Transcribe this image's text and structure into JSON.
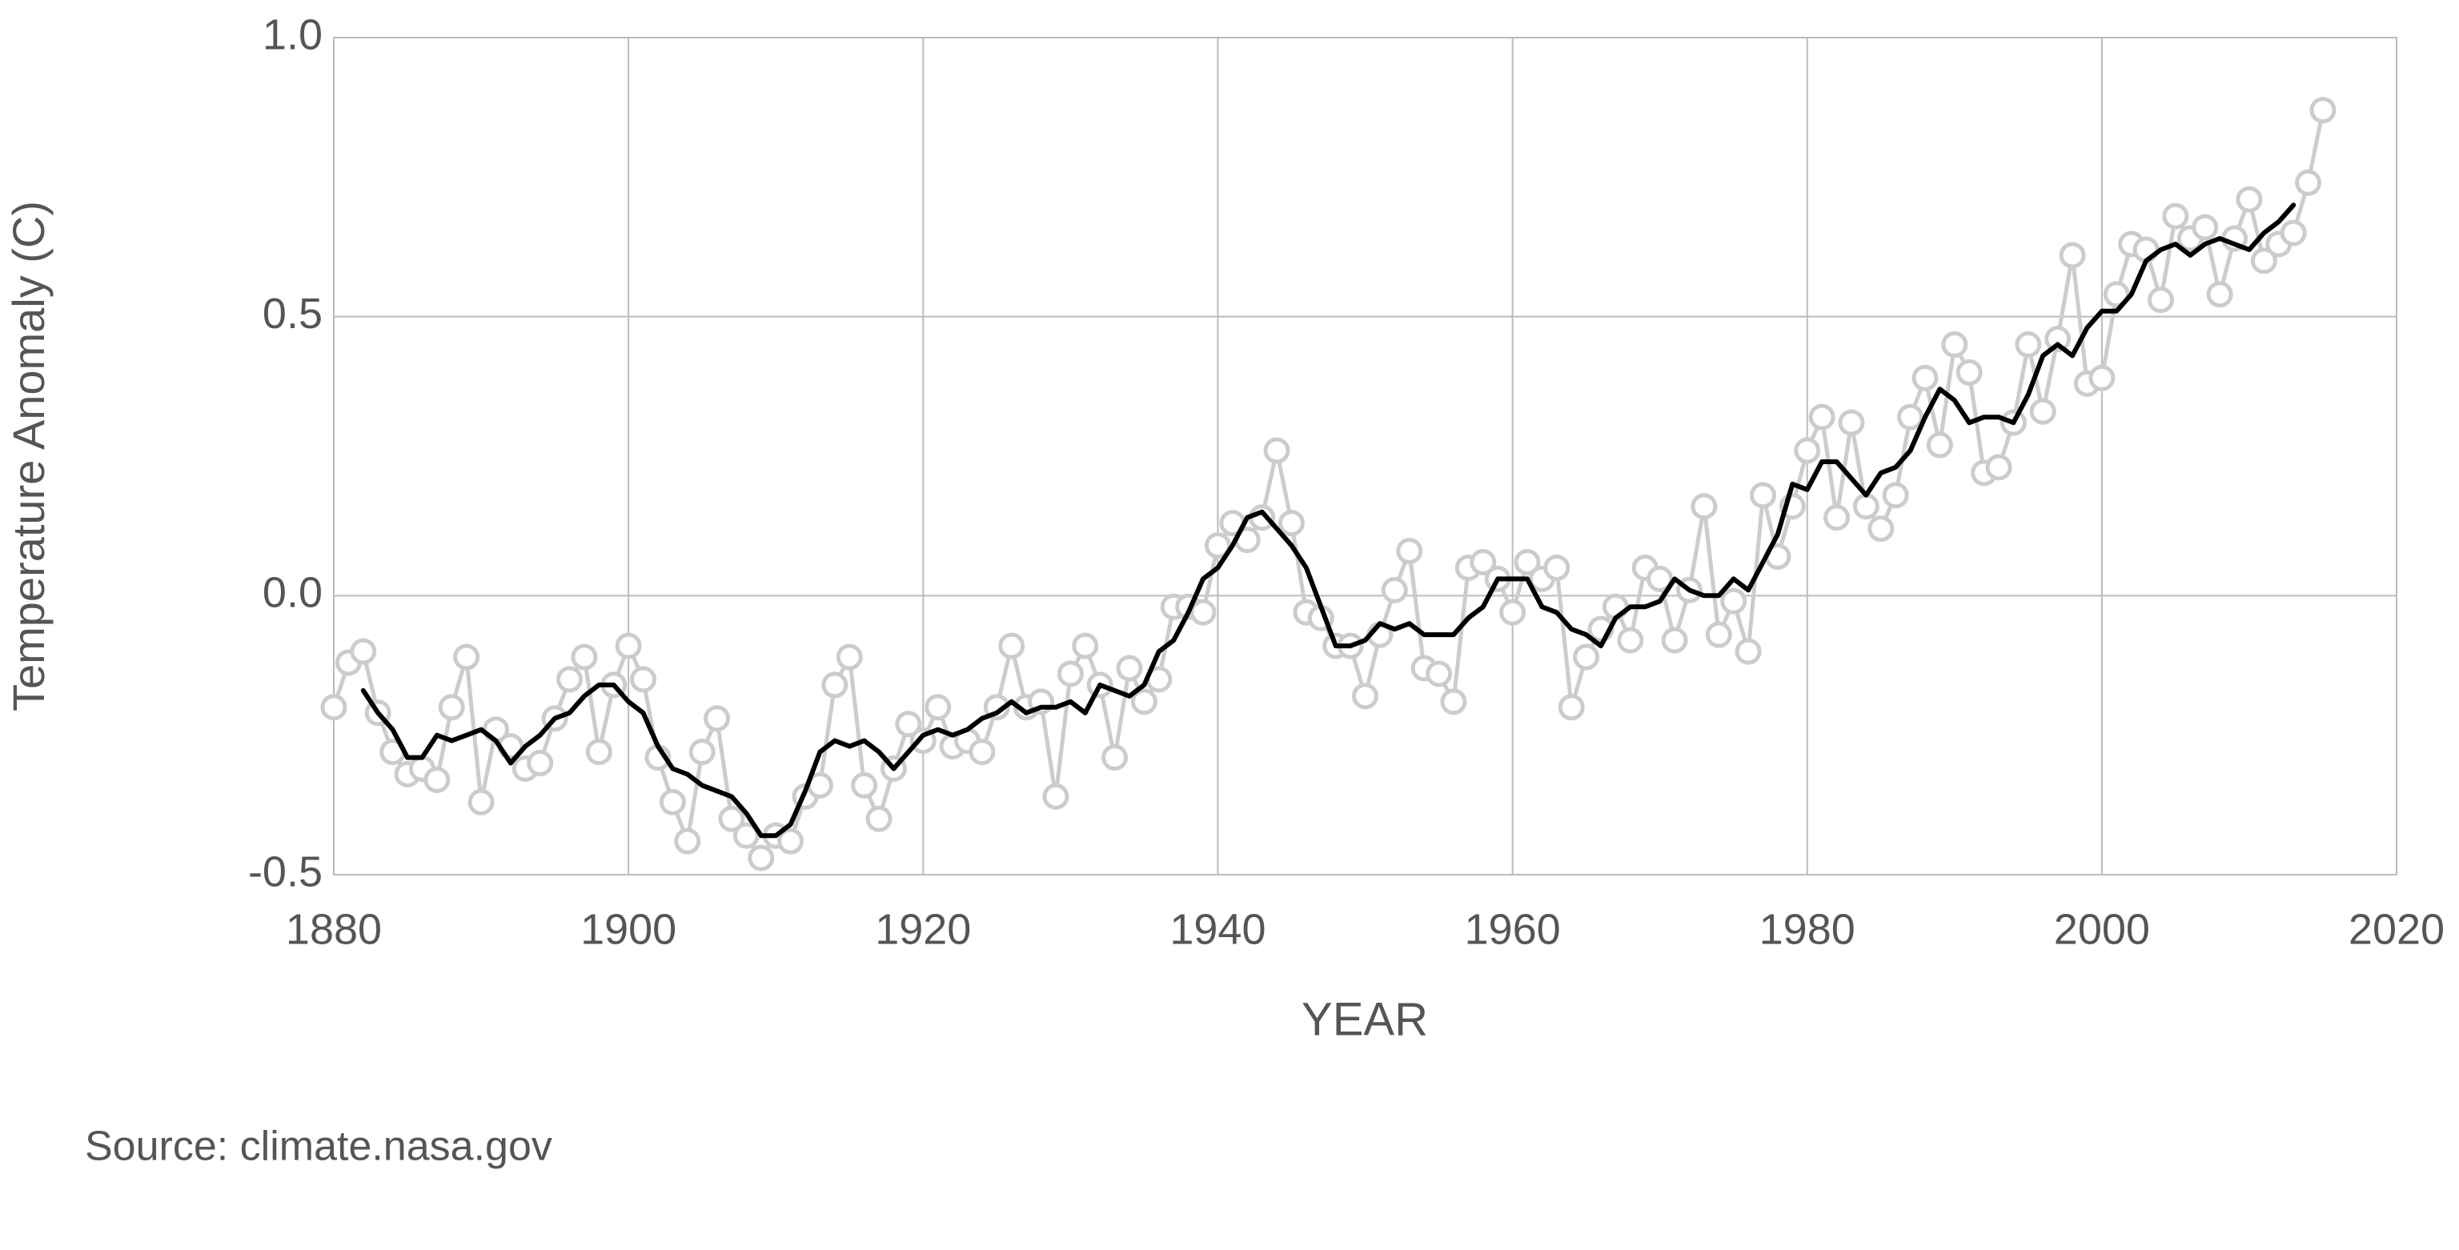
{
  "chart_data": {
    "type": "line",
    "y_label": "Temperature Anomaly (C)",
    "x_label": "YEAR",
    "source": "Source: climate.nasa.gov",
    "xlim": [
      1880,
      2020
    ],
    "xticks": [
      1880,
      1900,
      1920,
      1940,
      1960,
      1980,
      2000,
      2020
    ],
    "ylim": [
      -0.5,
      1.0
    ],
    "yticks": [
      -0.5,
      {
        "value": 0,
        "label": "0.0"
      },
      0.5,
      {
        "value": 1,
        "label": "1.0"
      }
    ],
    "grid": true,
    "x": [
      1880,
      1881,
      1882,
      1883,
      1884,
      1885,
      1886,
      1887,
      1888,
      1889,
      1890,
      1891,
      1892,
      1893,
      1894,
      1895,
      1896,
      1897,
      1898,
      1899,
      1900,
      1901,
      1902,
      1903,
      1904,
      1905,
      1906,
      1907,
      1908,
      1909,
      1910,
      1911,
      1912,
      1913,
      1914,
      1915,
      1916,
      1917,
      1918,
      1919,
      1920,
      1921,
      1922,
      1923,
      1924,
      1925,
      1926,
      1927,
      1928,
      1929,
      1930,
      1931,
      1932,
      1933,
      1934,
      1935,
      1936,
      1937,
      1938,
      1939,
      1940,
      1941,
      1942,
      1943,
      1944,
      1945,
      1946,
      1947,
      1948,
      1949,
      1950,
      1951,
      1952,
      1953,
      1954,
      1955,
      1956,
      1957,
      1958,
      1959,
      1960,
      1961,
      1962,
      1963,
      1964,
      1965,
      1966,
      1967,
      1968,
      1969,
      1970,
      1971,
      1972,
      1973,
      1974,
      1975,
      1976,
      1977,
      1978,
      1979,
      1980,
      1981,
      1982,
      1983,
      1984,
      1985,
      1986,
      1987,
      1988,
      1989,
      1990,
      1991,
      1992,
      1993,
      1994,
      1995,
      1996,
      1997,
      1998,
      1999,
      2000,
      2001,
      2002,
      2003,
      2004,
      2005,
      2006,
      2007,
      2008,
      2009,
      2010,
      2011,
      2012,
      2013,
      2014,
      2015
    ],
    "series": [
      {
        "color": "#cccccc",
        "marker": "circle",
        "values": [
          -0.2,
          -0.12,
          -0.1,
          -0.21,
          -0.28,
          -0.32,
          -0.31,
          -0.33,
          -0.2,
          -0.11,
          -0.37,
          -0.24,
          -0.27,
          -0.31,
          -0.3,
          -0.22,
          -0.15,
          -0.11,
          -0.28,
          -0.16,
          -0.09,
          -0.15,
          -0.29,
          -0.37,
          -0.44,
          -0.28,
          -0.22,
          -0.4,
          -0.43,
          -0.47,
          -0.43,
          -0.44,
          -0.36,
          -0.34,
          -0.16,
          -0.11,
          -0.34,
          -0.4,
          -0.31,
          -0.23,
          -0.26,
          -0.2,
          -0.27,
          -0.26,
          -0.28,
          -0.2,
          -0.09,
          -0.2,
          -0.19,
          -0.36,
          -0.14,
          -0.09,
          -0.16,
          -0.29,
          -0.13,
          -0.19,
          -0.15,
          -0.02,
          -0.02,
          -0.03,
          0.09,
          0.13,
          0.1,
          0.14,
          0.26,
          0.13,
          -0.03,
          -0.04,
          -0.09,
          -0.09,
          -0.18,
          -0.07,
          0.01,
          0.08,
          -0.13,
          -0.14,
          -0.19,
          0.05,
          0.06,
          0.03,
          -0.03,
          0.06,
          0.03,
          0.05,
          -0.2,
          -0.11,
          -0.06,
          -0.02,
          -0.08,
          0.05,
          0.03,
          -0.08,
          0.01,
          0.16,
          -0.07,
          -0.01,
          -0.1,
          0.18,
          0.07,
          0.16,
          0.26,
          0.32,
          0.14,
          0.31,
          0.16,
          0.12,
          0.18,
          0.32,
          0.39,
          0.27,
          0.45,
          0.4,
          0.22,
          0.23,
          0.31,
          0.45,
          0.33,
          0.46,
          0.61,
          0.38,
          0.39,
          0.54,
          0.63,
          0.62,
          0.53,
          0.68,
          0.64,
          0.66,
          0.54,
          0.64,
          0.71,
          0.6,
          0.63,
          0.65,
          0.74,
          0.87
        ]
      },
      {
        "color": "#000000",
        "values": [
          null,
          null,
          -0.17,
          -0.21,
          -0.24,
          -0.29,
          -0.29,
          -0.25,
          -0.26,
          -0.25,
          -0.24,
          -0.26,
          -0.3,
          -0.27,
          -0.25,
          -0.22,
          -0.21,
          -0.18,
          -0.16,
          -0.16,
          -0.19,
          -0.21,
          -0.27,
          -0.31,
          -0.32,
          -0.34,
          -0.35,
          -0.36,
          -0.39,
          -0.43,
          -0.43,
          -0.41,
          -0.35,
          -0.28,
          -0.26,
          -0.27,
          -0.26,
          -0.28,
          -0.31,
          -0.28,
          -0.25,
          -0.24,
          -0.25,
          -0.24,
          -0.22,
          -0.21,
          -0.19,
          -0.21,
          -0.2,
          -0.2,
          -0.19,
          -0.21,
          -0.16,
          -0.17,
          -0.18,
          -0.16,
          -0.1,
          -0.08,
          -0.03,
          0.03,
          0.05,
          0.09,
          0.14,
          0.15,
          0.12,
          0.09,
          0.05,
          -0.02,
          -0.09,
          -0.09,
          -0.08,
          -0.05,
          -0.06,
          -0.05,
          -0.07,
          -0.07,
          -0.07,
          -0.04,
          -0.02,
          0.03,
          0.03,
          0.03,
          -0.02,
          -0.03,
          -0.06,
          -0.07,
          -0.09,
          -0.04,
          -0.02,
          -0.02,
          -0.01,
          0.03,
          0.01,
          0.0,
          0.0,
          0.03,
          0.01,
          0.06,
          0.11,
          0.2,
          0.19,
          0.24,
          0.24,
          0.21,
          0.18,
          0.22,
          0.23,
          0.26,
          0.32,
          0.37,
          0.35,
          0.31,
          0.32,
          0.32,
          0.31,
          0.36,
          0.43,
          0.45,
          0.43,
          0.48,
          0.51,
          0.51,
          0.54,
          0.6,
          0.62,
          0.63,
          0.61,
          0.63,
          0.64,
          0.63,
          0.62,
          0.65,
          0.67,
          0.7,
          null,
          null
        ]
      }
    ]
  }
}
